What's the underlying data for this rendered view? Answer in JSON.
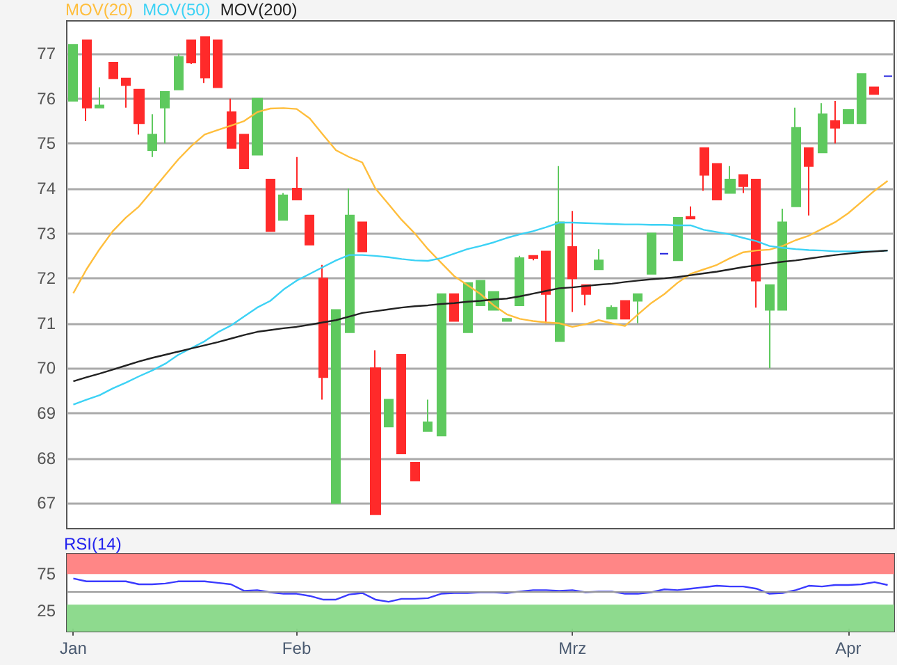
{
  "chart_data": [
    {
      "type": "candlestick",
      "categories": [
        null,
        null,
        null,
        null,
        null,
        null,
        null,
        null,
        null,
        null,
        null,
        null,
        null,
        null,
        null,
        null,
        null,
        null,
        null,
        null,
        null,
        null,
        null,
        null,
        null,
        null,
        null,
        null,
        null,
        null,
        null,
        null,
        null,
        null,
        null,
        null,
        null,
        null,
        null,
        null,
        null,
        null,
        null,
        null,
        null,
        null,
        null,
        null,
        null,
        null,
        null,
        null,
        null,
        null,
        null,
        null,
        null,
        null,
        null,
        null,
        null,
        null,
        null
      ],
      "ylim": [
        66.43,
        77.73
      ],
      "yticks": [
        67,
        68,
        69,
        70,
        71,
        72,
        73,
        74,
        75,
        76,
        77
      ],
      "grid": "y",
      "legend": "top left",
      "tick_labels": "y",
      "marker": "none",
      "series": [
        {
          "ohlc": [
            [
              75.95,
              77.2,
              75.95,
              77.2
            ],
            [
              77.3,
              77.3,
              75.5,
              75.8
            ],
            [
              75.8,
              76.25,
              75.8,
              75.85
            ],
            [
              76.8,
              76.8,
              76.45,
              76.45
            ],
            [
              76.45,
              76.45,
              75.8,
              76.3
            ],
            [
              76.2,
              76.2,
              75.2,
              75.45
            ],
            [
              74.85,
              75.65,
              74.7,
              75.2
            ],
            [
              75.8,
              76.15,
              75.0,
              76.15
            ],
            [
              76.2,
              77.0,
              76.2,
              76.93
            ],
            [
              77.3,
              77.3,
              76.77,
              76.8
            ],
            [
              77.37,
              77.37,
              76.35,
              76.47
            ],
            [
              77.3,
              77.3,
              76.25,
              76.25
            ],
            [
              75.7,
              76.0,
              74.9,
              74.9
            ],
            [
              75.2,
              75.2,
              74.45,
              74.45
            ],
            [
              74.75,
              76.0,
              74.75,
              76.0
            ],
            [
              74.2,
              74.2,
              73.05,
              73.05
            ],
            [
              73.3,
              73.9,
              73.3,
              73.85
            ],
            [
              74.0,
              74.7,
              73.75,
              73.75
            ],
            [
              73.4,
              73.4,
              72.75,
              72.75
            ],
            [
              72.0,
              72.3,
              69.3,
              69.8
            ],
            [
              67.0,
              71.3,
              67.0,
              71.3
            ],
            [
              70.8,
              74.0,
              70.8,
              73.4
            ],
            [
              73.25,
              73.25,
              72.6,
              72.6
            ],
            [
              70.0,
              70.4,
              66.75,
              66.75
            ],
            [
              68.7,
              69.3,
              68.7,
              69.3
            ],
            [
              70.3,
              70.3,
              68.1,
              68.1
            ],
            [
              67.9,
              67.9,
              67.5,
              67.5
            ],
            [
              68.6,
              69.3,
              68.6,
              68.8
            ],
            [
              68.5,
              71.65,
              68.5,
              71.65
            ],
            [
              71.65,
              71.65,
              71.05,
              71.05
            ],
            [
              70.8,
              71.9,
              70.8,
              71.9
            ],
            [
              71.4,
              71.95,
              71.4,
              71.95
            ],
            [
              71.3,
              71.7,
              71.3,
              71.7
            ],
            [
              71.05,
              71.1,
              71.05,
              71.1
            ],
            [
              71.4,
              72.5,
              71.4,
              72.45
            ],
            [
              72.5,
              72.5,
              72.4,
              72.45
            ],
            [
              72.6,
              72.6,
              71.0,
              71.65
            ],
            [
              70.6,
              74.5,
              70.6,
              73.25
            ],
            [
              72.7,
              73.5,
              71.25,
              72.0
            ],
            [
              71.85,
              71.85,
              71.4,
              71.65
            ],
            [
              72.2,
              72.65,
              72.2,
              72.4
            ],
            [
              71.1,
              71.4,
              71.1,
              71.35
            ],
            [
              71.5,
              71.5,
              71.1,
              71.1
            ],
            [
              71.5,
              71.65,
              71.0,
              71.65
            ],
            [
              72.1,
              73.0,
              72.1,
              73.0
            ],
            [
              72.55,
              72.55,
              72.55,
              72.55
            ],
            [
              72.4,
              73.35,
              72.4,
              73.35
            ],
            [
              73.37,
              73.6,
              73.33,
              73.33
            ],
            [
              74.9,
              74.9,
              73.95,
              74.3
            ],
            [
              74.55,
              74.55,
              73.75,
              73.75
            ],
            [
              73.9,
              74.5,
              73.9,
              74.2
            ],
            [
              74.3,
              74.3,
              73.9,
              74.05
            ],
            [
              74.2,
              74.2,
              71.35,
              71.95
            ],
            [
              71.3,
              71.85,
              70.0,
              71.85
            ],
            [
              71.3,
              73.55,
              71.3,
              73.25
            ],
            [
              73.6,
              75.8,
              73.6,
              75.35
            ],
            [
              74.9,
              74.9,
              73.4,
              74.5
            ],
            [
              74.8,
              75.9,
              74.8,
              75.65
            ],
            [
              75.5,
              75.95,
              75.0,
              75.35
            ],
            [
              75.45,
              75.75,
              75.45,
              75.75
            ],
            [
              75.45,
              76.55,
              75.45,
              76.55
            ],
            [
              76.25,
              76.25,
              76.1,
              76.1
            ],
            [
              76.5,
              76.5,
              76.5,
              76.5
            ]
          ],
          "colors": [
            "#5ec95e",
            "#ff2a2a",
            "#5ec95e",
            "#ff2a2a",
            "#ff2a2a",
            "#ff2a2a",
            "#5ec95e",
            "#5ec95e",
            "#5ec95e",
            "#ff2a2a",
            "#ff2a2a",
            "#ff2a2a",
            "#ff2a2a",
            "#ff2a2a",
            "#5ec95e",
            "#ff2a2a",
            "#5ec95e",
            "#ff2a2a",
            "#ff2a2a",
            "#ff2a2a",
            "#5ec95e",
            "#5ec95e",
            "#ff2a2a",
            "#ff2a2a",
            "#5ec95e",
            "#ff2a2a",
            "#ff2a2a",
            "#5ec95e",
            "#5ec95e",
            "#ff2a2a",
            "#5ec95e",
            "#5ec95e",
            "#5ec95e",
            "#5ec95e",
            "#5ec95e",
            "#ff2a2a",
            "#ff2a2a",
            "#5ec95e",
            "#ff2a2a",
            "#ff2a2a",
            "#5ec95e",
            "#5ec95e",
            "#ff2a2a",
            "#5ec95e",
            "#5ec95e",
            "#2222dd",
            "#5ec95e",
            "#ff2a2a",
            "#ff2a2a",
            "#ff2a2a",
            "#5ec95e",
            "#ff2a2a",
            "#ff2a2a",
            "#5ec95e",
            "#5ec95e",
            "#5ec95e",
            "#ff2a2a",
            "#5ec95e",
            "#ff2a2a",
            "#5ec95e",
            "#5ec95e",
            "#ff2a2a",
            "#2222dd"
          ]
        },
        {
          "type": "line",
          "name": "MOV(20)",
          "color": "#ffbe3c",
          "values": [
            71.67,
            72.2,
            72.65,
            73.05,
            73.35,
            73.6,
            73.95,
            74.3,
            74.65,
            74.95,
            75.2,
            75.3,
            75.4,
            75.5,
            75.7,
            75.78,
            75.79,
            75.77,
            75.56,
            75.2,
            74.85,
            74.7,
            74.58,
            74.0,
            73.65,
            73.3,
            73.0,
            72.65,
            72.35,
            72.05,
            71.85,
            71.65,
            71.4,
            71.2,
            71.1,
            71.05,
            71.02,
            71.0,
            70.92,
            70.98,
            71.07,
            71.0,
            70.94,
            71.2,
            71.45,
            71.65,
            71.9,
            72.1,
            72.2,
            72.3,
            72.45,
            72.58,
            72.62,
            72.64,
            72.72,
            72.85,
            72.95,
            73.1,
            73.25,
            73.45,
            73.7,
            73.95,
            74.17
          ]
        },
        {
          "type": "line",
          "name": "MOV(50)",
          "color": "#3cd2f5",
          "values": [
            69.19,
            69.3,
            69.4,
            69.55,
            69.68,
            69.82,
            69.95,
            70.1,
            70.3,
            70.45,
            70.6,
            70.8,
            70.95,
            71.15,
            71.35,
            71.5,
            71.75,
            71.95,
            72.1,
            72.25,
            72.4,
            72.52,
            72.52,
            72.5,
            72.47,
            72.43,
            72.4,
            72.39,
            72.45,
            72.55,
            72.65,
            72.72,
            72.8,
            72.9,
            72.98,
            73.05,
            73.14,
            73.24,
            73.24,
            73.23,
            73.22,
            73.21,
            73.2,
            73.2,
            73.19,
            73.19,
            73.18,
            73.18,
            73.08,
            73.03,
            72.98,
            72.9,
            72.83,
            72.72,
            72.68,
            72.65,
            72.63,
            72.62,
            72.6,
            72.6,
            72.6,
            72.6,
            72.62
          ]
        },
        {
          "type": "line",
          "name": "MOV(200)",
          "color": "#222222",
          "values": [
            69.71,
            69.8,
            69.88,
            69.97,
            70.06,
            70.15,
            70.23,
            70.3,
            70.37,
            70.44,
            70.51,
            70.58,
            70.66,
            70.74,
            70.81,
            70.85,
            70.89,
            70.92,
            70.97,
            71.02,
            71.07,
            71.15,
            71.23,
            71.27,
            71.31,
            71.35,
            71.38,
            71.4,
            71.43,
            71.45,
            71.48,
            71.5,
            71.53,
            71.55,
            71.6,
            71.66,
            71.72,
            71.78,
            71.8,
            71.83,
            71.86,
            71.88,
            71.92,
            71.95,
            71.98,
            72.0,
            72.03,
            72.07,
            72.11,
            72.15,
            72.2,
            72.25,
            72.29,
            72.33,
            72.37,
            72.4,
            72.44,
            72.48,
            72.52,
            72.55,
            72.58,
            72.6,
            72.62
          ]
        }
      ]
    },
    {
      "type": "line",
      "title": "RSI(14)",
      "categories": [
        "Jan",
        null,
        null,
        null,
        null,
        null,
        null,
        null,
        null,
        null,
        null,
        null,
        null,
        null,
        null,
        null,
        null,
        "Feb",
        null,
        null,
        null,
        null,
        null,
        null,
        null,
        null,
        null,
        null,
        null,
        null,
        null,
        null,
        null,
        null,
        null,
        null,
        null,
        null,
        "Mrz",
        null,
        null,
        null,
        null,
        null,
        null,
        null,
        null,
        null,
        null,
        null,
        null,
        null,
        null,
        null,
        null,
        null,
        null,
        null,
        null,
        "Apr",
        null,
        null,
        null
      ],
      "ylim": [
        -4,
        103
      ],
      "yticks": [
        25,
        75
      ],
      "marker": "none",
      "bands": [
        {
          "axis": "y",
          "from": 75,
          "to": 103,
          "color": "#ff8080"
        },
        {
          "axis": "y",
          "from": -4,
          "to": 33,
          "color": "#88d888"
        }
      ],
      "ref_lines": [
        {
          "axis": "y",
          "value": 50,
          "color": "#999999"
        }
      ],
      "series": [
        {
          "color": "#3b3bff",
          "values": [
            69,
            65,
            65,
            65,
            65,
            61,
            61,
            62,
            65,
            65,
            65,
            63,
            61,
            52,
            53,
            50,
            48,
            48,
            45,
            40,
            40,
            47,
            49,
            40,
            37,
            41,
            41,
            42,
            48,
            49,
            49,
            50,
            50,
            49,
            51,
            53,
            53,
            52,
            53,
            50,
            51,
            51,
            48,
            48,
            50,
            54,
            53,
            55,
            57,
            59,
            58,
            58,
            55,
            48,
            49,
            53,
            59,
            58,
            60,
            60,
            61,
            64,
            60
          ]
        }
      ]
    }
  ]
}
